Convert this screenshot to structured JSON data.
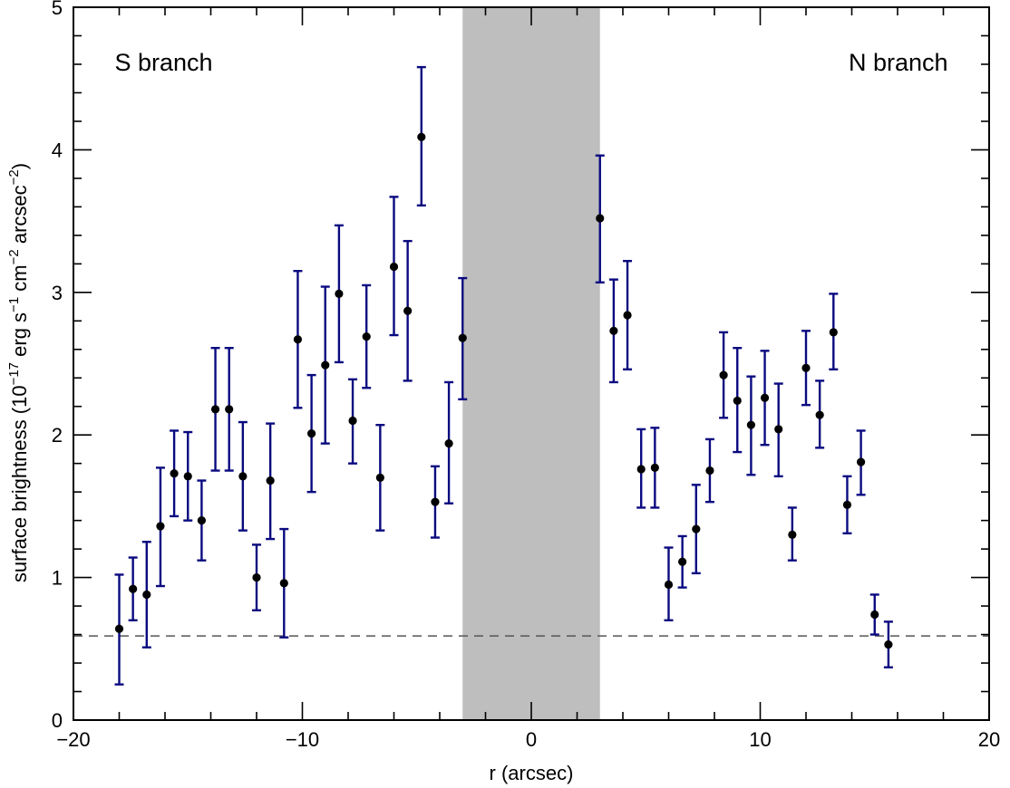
{
  "chart_data": {
    "type": "scatter",
    "xlabel": "r (arcsec)",
    "ylabel": {
      "prefix": "surface brightness (10",
      "exp1": "−17",
      "mid1": " erg s",
      "exp2": "−1",
      "mid2": " cm",
      "exp3": "−2",
      "mid3": " arcsec",
      "exp4": "−2",
      "suffix": ")"
    },
    "xlim": [
      -20,
      20
    ],
    "ylim": [
      0,
      5
    ],
    "x_ticks": [
      -20,
      -10,
      0,
      10,
      20
    ],
    "x_tick_labels": [
      "−20",
      "−10",
      "0",
      "10",
      "20"
    ],
    "y_ticks": [
      0,
      1,
      2,
      3,
      4,
      5
    ],
    "y_tick_labels": [
      "0",
      "1",
      "2",
      "3",
      "4",
      "5"
    ],
    "x_minor_step": 2,
    "y_minor_step": 0.2,
    "grid": false,
    "shaded_region": {
      "x": [
        -3,
        3
      ],
      "color": "#bebebe"
    },
    "reference_line": {
      "y": 0.59,
      "style": "dashed",
      "color": "#555555"
    },
    "annotations": [
      {
        "text": "S branch",
        "x": -18.2,
        "y": 4.62,
        "anchor": "start"
      },
      {
        "text": "N branch",
        "x": 18.2,
        "y": 4.62,
        "anchor": "end"
      }
    ],
    "colors": {
      "points": "#000000",
      "errorbars": "#0a0a80"
    },
    "series": [
      {
        "points": [
          {
            "x": -18.0,
            "y": 0.64,
            "lo": 0.25,
            "hi": 1.02
          },
          {
            "x": -17.4,
            "y": 0.92,
            "lo": 0.7,
            "hi": 1.14
          },
          {
            "x": -16.8,
            "y": 0.88,
            "lo": 0.51,
            "hi": 1.25
          },
          {
            "x": -16.2,
            "y": 1.36,
            "lo": 0.94,
            "hi": 1.77
          },
          {
            "x": -15.6,
            "y": 1.73,
            "lo": 1.43,
            "hi": 2.03
          },
          {
            "x": -15.0,
            "y": 1.71,
            "lo": 1.4,
            "hi": 2.02
          },
          {
            "x": -14.4,
            "y": 1.4,
            "lo": 1.12,
            "hi": 1.68
          },
          {
            "x": -13.8,
            "y": 2.18,
            "lo": 1.75,
            "hi": 2.61
          },
          {
            "x": -13.2,
            "y": 2.18,
            "lo": 1.75,
            "hi": 2.61
          },
          {
            "x": -12.6,
            "y": 1.71,
            "lo": 1.33,
            "hi": 2.09
          },
          {
            "x": -12.0,
            "y": 1.0,
            "lo": 0.77,
            "hi": 1.23
          },
          {
            "x": -11.4,
            "y": 1.68,
            "lo": 1.27,
            "hi": 2.08
          },
          {
            "x": -10.8,
            "y": 0.96,
            "lo": 0.58,
            "hi": 1.34
          },
          {
            "x": -10.2,
            "y": 2.67,
            "lo": 2.19,
            "hi": 3.15
          },
          {
            "x": -9.6,
            "y": 2.01,
            "lo": 1.6,
            "hi": 2.42
          },
          {
            "x": -9.0,
            "y": 2.49,
            "lo": 1.94,
            "hi": 3.04
          },
          {
            "x": -8.4,
            "y": 2.99,
            "lo": 2.51,
            "hi": 3.47
          },
          {
            "x": -7.8,
            "y": 2.1,
            "lo": 1.8,
            "hi": 2.39
          },
          {
            "x": -7.2,
            "y": 2.69,
            "lo": 2.33,
            "hi": 3.05
          },
          {
            "x": -6.6,
            "y": 1.7,
            "lo": 1.33,
            "hi": 2.07
          },
          {
            "x": -6.0,
            "y": 3.18,
            "lo": 2.7,
            "hi": 3.67
          },
          {
            "x": -5.4,
            "y": 2.87,
            "lo": 2.38,
            "hi": 3.36
          },
          {
            "x": -4.8,
            "y": 4.09,
            "lo": 3.61,
            "hi": 4.58
          },
          {
            "x": -4.2,
            "y": 1.53,
            "lo": 1.28,
            "hi": 1.78
          },
          {
            "x": -3.6,
            "y": 1.94,
            "lo": 1.52,
            "hi": 2.37
          },
          {
            "x": -3.0,
            "y": 2.68,
            "lo": 2.25,
            "hi": 3.1
          },
          {
            "x": 3.0,
            "y": 3.52,
            "lo": 3.07,
            "hi": 3.96
          },
          {
            "x": 3.6,
            "y": 2.73,
            "lo": 2.37,
            "hi": 3.09
          },
          {
            "x": 4.2,
            "y": 2.84,
            "lo": 2.46,
            "hi": 3.22
          },
          {
            "x": 4.8,
            "y": 1.76,
            "lo": 1.49,
            "hi": 2.04
          },
          {
            "x": 5.4,
            "y": 1.77,
            "lo": 1.49,
            "hi": 2.05
          },
          {
            "x": 6.0,
            "y": 0.95,
            "lo": 0.7,
            "hi": 1.21
          },
          {
            "x": 6.6,
            "y": 1.11,
            "lo": 0.93,
            "hi": 1.29
          },
          {
            "x": 7.2,
            "y": 1.34,
            "lo": 1.03,
            "hi": 1.65
          },
          {
            "x": 7.8,
            "y": 1.75,
            "lo": 1.53,
            "hi": 1.97
          },
          {
            "x": 8.4,
            "y": 2.42,
            "lo": 2.12,
            "hi": 2.72
          },
          {
            "x": 9.0,
            "y": 2.24,
            "lo": 1.88,
            "hi": 2.61
          },
          {
            "x": 9.6,
            "y": 2.07,
            "lo": 1.72,
            "hi": 2.41
          },
          {
            "x": 10.2,
            "y": 2.26,
            "lo": 1.93,
            "hi": 2.59
          },
          {
            "x": 10.8,
            "y": 2.04,
            "lo": 1.71,
            "hi": 2.36
          },
          {
            "x": 11.4,
            "y": 1.3,
            "lo": 1.12,
            "hi": 1.49
          },
          {
            "x": 12.0,
            "y": 2.47,
            "lo": 2.21,
            "hi": 2.73
          },
          {
            "x": 12.6,
            "y": 2.14,
            "lo": 1.91,
            "hi": 2.38
          },
          {
            "x": 13.2,
            "y": 2.72,
            "lo": 2.46,
            "hi": 2.99
          },
          {
            "x": 13.8,
            "y": 1.51,
            "lo": 1.31,
            "hi": 1.71
          },
          {
            "x": 14.4,
            "y": 1.81,
            "lo": 1.58,
            "hi": 2.03
          },
          {
            "x": 15.0,
            "y": 0.74,
            "lo": 0.6,
            "hi": 0.88
          },
          {
            "x": 15.6,
            "y": 0.53,
            "lo": 0.37,
            "hi": 0.69
          }
        ]
      }
    ]
  }
}
